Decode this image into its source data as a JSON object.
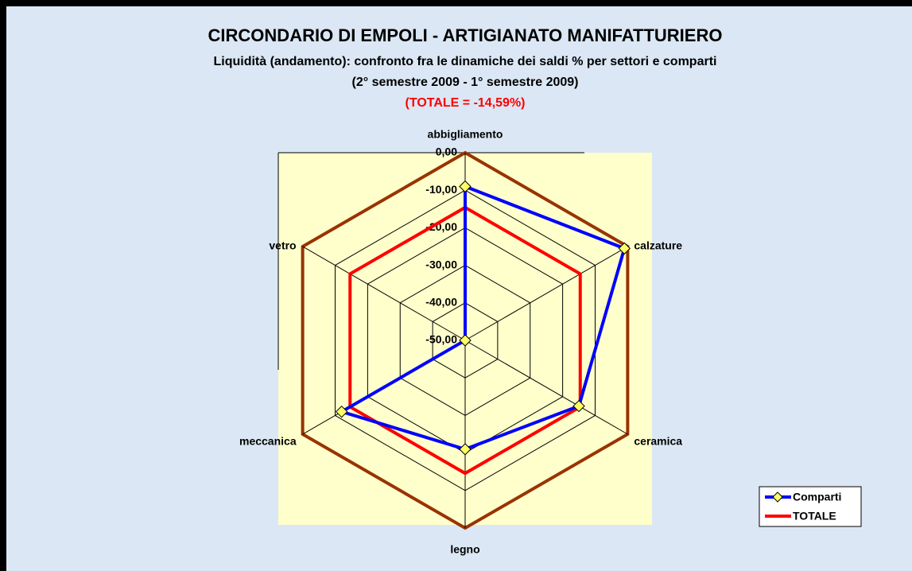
{
  "chart_data": {
    "type": "radar",
    "title": "CIRCONDARIO DI EMPOLI - ARTIGIANATO MANIFATTURIERO",
    "subtitle": [
      "Liquidità (andamento): confronto fra le dinamiche dei saldi % per settori e comparti",
      "(2° semestre 2009 - 1° semestre 2009)"
    ],
    "annotation": "(TOTALE = -14,59%)",
    "categories": [
      "abbigliamento",
      "calzature",
      "ceramica",
      "legno",
      "meccanica",
      "vetro"
    ],
    "series": [
      {
        "name": "Comparti",
        "color": "#0000ff",
        "marker_color": "#ffff66",
        "values": [
          -9,
          -1,
          -15,
          -21,
          -12,
          -50
        ]
      },
      {
        "name": "TOTALE",
        "color": "#ff0000",
        "values": [
          -14.59,
          -14.59,
          -14.59,
          -14.59,
          -14.59,
          -14.59
        ]
      }
    ],
    "ylim": [
      -50,
      0
    ],
    "yticks": [
      {
        "value": 0,
        "label": "0,00"
      },
      {
        "value": -10,
        "label": "-10,00"
      },
      {
        "value": -20,
        "label": "-20,00"
      },
      {
        "value": -30,
        "label": "-30,00"
      },
      {
        "value": -40,
        "label": "-40,00"
      },
      {
        "value": -50,
        "label": "-50,00"
      }
    ],
    "outer_ring_color": "#993300",
    "legend": "bottom-right"
  }
}
